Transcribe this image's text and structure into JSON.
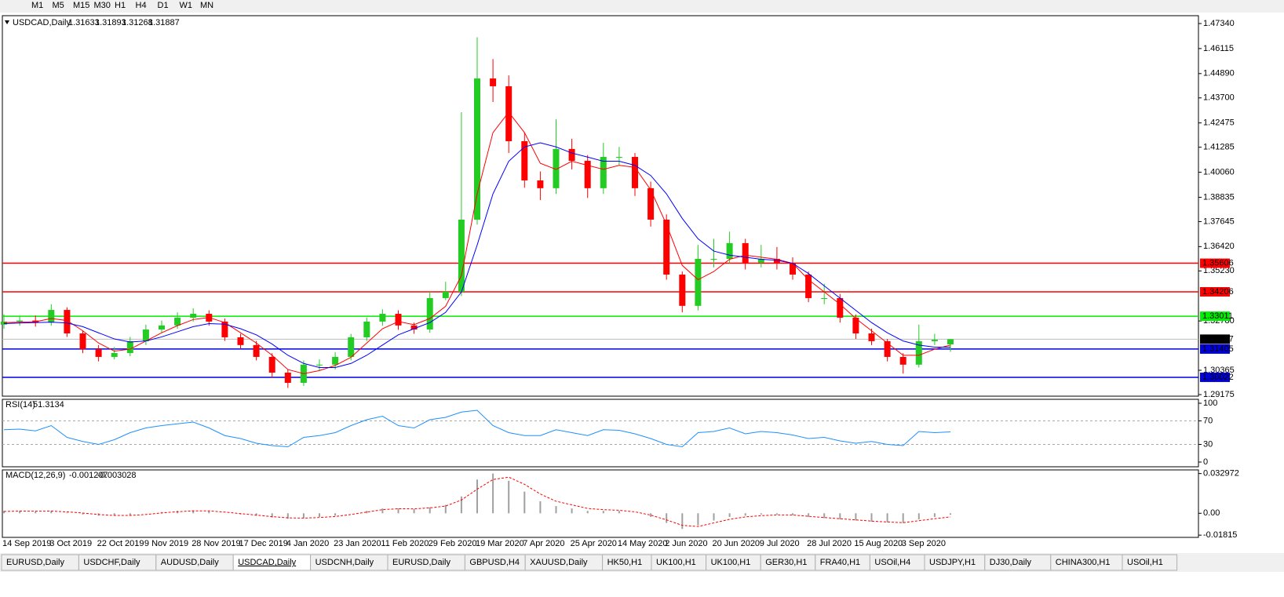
{
  "toolbar": [
    "M1",
    "M5",
    "M15",
    "M30",
    "H1",
    "H4",
    "D1",
    "W1",
    "MN"
  ],
  "chart_data": [
    {
      "type": "candlestick",
      "title": "USDCAD,Daily",
      "categories": [
        "14 Sep 2019",
        null,
        null,
        "3 Oct 2019",
        null,
        null,
        "22 Oct 2019",
        null,
        null,
        "9 Nov 2019",
        null,
        null,
        "28 Nov 2019",
        null,
        null,
        "17 Dec 2019",
        null,
        null,
        "4 Jan 2020",
        null,
        null,
        "23 Jan 2020",
        null,
        null,
        "11 Feb 2020",
        null,
        null,
        "29 Feb 2020",
        null,
        null,
        "19 Mar 2020",
        null,
        null,
        "7 Apr 2020",
        null,
        null,
        "25 Apr 2020",
        null,
        null,
        "14 May 2020",
        null,
        null,
        "2 Jun 2020",
        null,
        null,
        "20 Jun 2020",
        null,
        null,
        "9 Jul 2020",
        null,
        null,
        "28 Jul 2020",
        null,
        null,
        "15 Aug 2020",
        null,
        null,
        "3 Sep 2020",
        null,
        null,
        null
      ],
      "open": [
        1.326,
        1.3275,
        1.328,
        1.327,
        1.3332,
        1.3217,
        1.314,
        1.3102,
        1.3121,
        1.3179,
        1.3236,
        1.3256,
        1.3294,
        1.3313,
        1.3275,
        1.3198,
        1.316,
        1.3102,
        1.3025,
        1.2975,
        1.3064,
        1.3064,
        1.3102,
        1.3198,
        1.3275,
        1.3313,
        1.3256,
        1.3236,
        1.339,
        1.3421,
        1.3774,
        1.4465,
        1.4427,
        1.4158,
        1.3966,
        1.3928,
        1.412,
        1.4062,
        1.3928,
        1.4081,
        1.4081,
        1.3928,
        1.3774,
        1.3505,
        1.3352,
        1.3582,
        1.3582,
        1.3659,
        1.3563,
        1.3582,
        1.3563,
        1.3505,
        1.339,
        1.339,
        1.3294,
        1.3217,
        1.3179,
        1.3102,
        1.3064,
        1.3179,
        1.31633
      ],
      "high": [
        1.331,
        1.33,
        1.3305,
        1.336,
        1.3345,
        1.323,
        1.316,
        1.315,
        1.32,
        1.326,
        1.328,
        1.332,
        1.334,
        1.333,
        1.329,
        1.3215,
        1.318,
        1.312,
        1.304,
        1.3085,
        1.309,
        1.3125,
        1.3215,
        1.3295,
        1.3335,
        1.333,
        1.327,
        1.342,
        1.347,
        1.43,
        1.4667,
        1.456,
        1.448,
        1.42,
        1.401,
        1.4265,
        1.417,
        1.409,
        1.415,
        1.413,
        1.41,
        1.396,
        1.38,
        1.352,
        1.365,
        1.368,
        1.3715,
        1.368,
        1.365,
        1.364,
        1.359,
        1.352,
        1.346,
        1.341,
        1.331,
        1.324,
        1.319,
        1.312,
        1.326,
        1.3215,
        1.31893
      ],
      "low": [
        1.324,
        1.3255,
        1.325,
        1.3255,
        1.32,
        1.312,
        1.308,
        1.309,
        1.3105,
        1.316,
        1.322,
        1.324,
        1.3275,
        1.3255,
        1.318,
        1.314,
        1.3085,
        1.3,
        1.295,
        1.296,
        1.3035,
        1.304,
        1.3085,
        1.318,
        1.3255,
        1.3235,
        1.3215,
        1.322,
        1.338,
        1.34,
        1.375,
        1.435,
        1.41,
        1.393,
        1.387,
        1.39,
        1.402,
        1.388,
        1.39,
        1.404,
        1.389,
        1.374,
        1.348,
        1.332,
        1.333,
        1.354,
        1.356,
        1.353,
        1.354,
        1.353,
        1.348,
        1.337,
        1.336,
        1.327,
        1.319,
        1.316,
        1.308,
        1.302,
        1.305,
        1.316,
        1.31268
      ],
      "close": [
        1.3275,
        1.328,
        1.327,
        1.3332,
        1.3217,
        1.314,
        1.3102,
        1.3121,
        1.3179,
        1.3236,
        1.3256,
        1.3294,
        1.3313,
        1.3275,
        1.3198,
        1.316,
        1.3102,
        1.3025,
        1.2975,
        1.3064,
        1.3064,
        1.3102,
        1.3198,
        1.3275,
        1.3313,
        1.3256,
        1.3236,
        1.339,
        1.3421,
        1.3774,
        1.4465,
        1.4427,
        1.4158,
        1.3966,
        1.3928,
        1.412,
        1.4062,
        1.3928,
        1.4081,
        1.4081,
        1.3928,
        1.3774,
        1.3505,
        1.3352,
        1.3582,
        1.3582,
        1.3659,
        1.3563,
        1.3582,
        1.3563,
        1.3505,
        1.339,
        1.339,
        1.3294,
        1.3217,
        1.3179,
        1.3102,
        1.3064,
        1.3179,
        1.3186,
        1.31887
      ],
      "up_color": "#22cc22",
      "down_color": "#ff0000",
      "overlays": [
        {
          "color": "#ff0000",
          "values": [
            1.327,
            1.3272,
            1.3274,
            1.329,
            1.328,
            1.323,
            1.317,
            1.313,
            1.314,
            1.318,
            1.322,
            1.3255,
            1.3285,
            1.3295,
            1.327,
            1.322,
            1.317,
            1.311,
            1.304,
            1.302,
            1.3035,
            1.306,
            1.31,
            1.317,
            1.324,
            1.3275,
            1.326,
            1.329,
            1.335,
            1.35,
            1.39,
            1.42,
            1.43,
            1.42,
            1.405,
            1.402,
            1.406,
            1.404,
            1.402,
            1.404,
            1.403,
            1.392,
            1.375,
            1.355,
            1.348,
            1.352,
            1.358,
            1.36,
            1.359,
            1.358,
            1.356,
            1.348,
            1.342,
            1.336,
            1.329,
            1.323,
            1.317,
            1.311,
            1.311,
            1.314,
            1.316
          ]
        },
        {
          "color": "#0000ff",
          "values": [
            1.3265,
            1.3268,
            1.327,
            1.3272,
            1.3268,
            1.325,
            1.322,
            1.319,
            1.3175,
            1.318,
            1.32,
            1.3225,
            1.325,
            1.3265,
            1.3262,
            1.324,
            1.321,
            1.3165,
            1.311,
            1.307,
            1.305,
            1.305,
            1.307,
            1.311,
            1.316,
            1.321,
            1.324,
            1.327,
            1.332,
            1.342,
            1.365,
            1.39,
            1.406,
            1.413,
            1.415,
            1.413,
            1.41,
            1.408,
            1.406,
            1.406,
            1.404,
            1.399,
            1.39,
            1.378,
            1.368,
            1.362,
            1.36,
            1.359,
            1.358,
            1.3575,
            1.356,
            1.351,
            1.345,
            1.339,
            1.333,
            1.327,
            1.322,
            1.318,
            1.316,
            1.315,
            1.315
          ]
        }
      ],
      "levels": [
        {
          "value": 1.35606,
          "color": "#ff0000"
        },
        {
          "value": 1.34206,
          "color": "#ff0000"
        },
        {
          "value": 1.33011,
          "color": "#00ee00"
        },
        {
          "value": 1.31405,
          "color": "#0000dd"
        },
        {
          "value": 1.30022,
          "color": "#0000dd"
        }
      ],
      "ylim": [
        1.29098,
        1.47724
      ],
      "yticks": [
        {
          "value": 1.4734,
          "label": "1.47340"
        },
        1.46115,
        {
          "value": 1.4489,
          "label": "1.44890"
        },
        {
          "value": 1.437,
          "label": "1.43700"
        },
        1.42475,
        1.41285,
        {
          "value": 1.4006,
          "label": "1.40060"
        },
        1.38835,
        1.37645,
        {
          "value": 1.3642,
          "label": "1.36420"
        },
        {
          "value": 1.3523,
          "label": "1.35230"
        },
        {
          "value": 1.3278,
          "label": "1.32780"
        },
        1.30365,
        1.29175
      ]
    },
    {
      "type": "line",
      "title": "RSI(14)",
      "color": "#1e90ff",
      "values": [
        55,
        56,
        53,
        62,
        42,
        35,
        30,
        38,
        50,
        58,
        62,
        65,
        68,
        58,
        45,
        40,
        32,
        28,
        26,
        42,
        45,
        50,
        62,
        72,
        78,
        62,
        58,
        72,
        76,
        85,
        88,
        62,
        50,
        45,
        45,
        55,
        50,
        45,
        55,
        54,
        48,
        40,
        30,
        26,
        50,
        52,
        58,
        48,
        52,
        50,
        46,
        40,
        42,
        36,
        32,
        35,
        30,
        28,
        52,
        50,
        51.3134
      ],
      "ylim": [
        -8,
        106.7
      ],
      "yticks": [
        0,
        30,
        70,
        100
      ]
    },
    {
      "type": "macd",
      "title": "MACD(12,26,9)",
      "histogram_color": "#a0a0a0",
      "signal_color": "#ff0000",
      "histogram": [
        0.002,
        0.002,
        0.0015,
        0.002,
        0.0005,
        -0.001,
        -0.002,
        -0.002,
        -0.0015,
        0,
        0.001,
        0.002,
        0.0025,
        0.002,
        0,
        -0.001,
        -0.002,
        -0.0035,
        -0.0045,
        -0.004,
        -0.003,
        -0.002,
        0,
        0.002,
        0.004,
        0.004,
        0.0035,
        0.005,
        0.007,
        0.014,
        0.028,
        0.033,
        0.027,
        0.018,
        0.01,
        0.006,
        0.004,
        0.002,
        0.002,
        0.002,
        0,
        -0.003,
        -0.008,
        -0.013,
        -0.01,
        -0.006,
        -0.003,
        -0.002,
        -0.001,
        -0.001,
        -0.0015,
        -0.003,
        -0.004,
        -0.005,
        -0.006,
        -0.007,
        -0.0075,
        -0.008,
        -0.005,
        -0.003,
        -0.001207
      ],
      "signal": [
        0.0015,
        0.0018,
        0.0017,
        0.0018,
        0.0012,
        0.0002,
        -0.001,
        -0.0018,
        -0.0018,
        -0.001,
        0.0003,
        0.0013,
        0.002,
        0.002,
        0.001,
        -0.0003,
        -0.0015,
        -0.0028,
        -0.0038,
        -0.004,
        -0.0035,
        -0.0027,
        -0.001,
        0.001,
        0.003,
        0.0038,
        0.0037,
        0.0045,
        0.006,
        0.011,
        0.02,
        0.028,
        0.03,
        0.024,
        0.016,
        0.01,
        0.007,
        0.004,
        0.003,
        0.0025,
        0.0012,
        -0.0015,
        -0.0055,
        -0.01,
        -0.011,
        -0.008,
        -0.005,
        -0.003,
        -0.002,
        -0.0013,
        -0.0014,
        -0.0025,
        -0.0035,
        -0.0045,
        -0.0055,
        -0.0065,
        -0.0072,
        -0.0078,
        -0.0062,
        -0.0045,
        -0.003028
      ],
      "ylim": [
        -0.02,
        0.036
      ],
      "yticks": [
        0.032972,
        {
          "value": 0,
          "label": "0.00"
        },
        -0.01815
      ]
    }
  ],
  "tabs": [
    "EURUSD,Daily",
    "USDCHF,Daily",
    "AUDUSD,Daily",
    "USDCAD,Daily",
    "USDCNH,Daily",
    "EURUSD,Daily",
    "GBPUSD,H4",
    "XAUUSD,Daily",
    "HK50,H1",
    "UK100,H1",
    "UK100,H1",
    "GER30,H1",
    "FRA40,H1",
    "USOil,H4",
    "USDJPY,H1",
    "DJ30,Daily",
    "CHINA300,H1",
    "USOil,H1"
  ],
  "active_tab": 3
}
